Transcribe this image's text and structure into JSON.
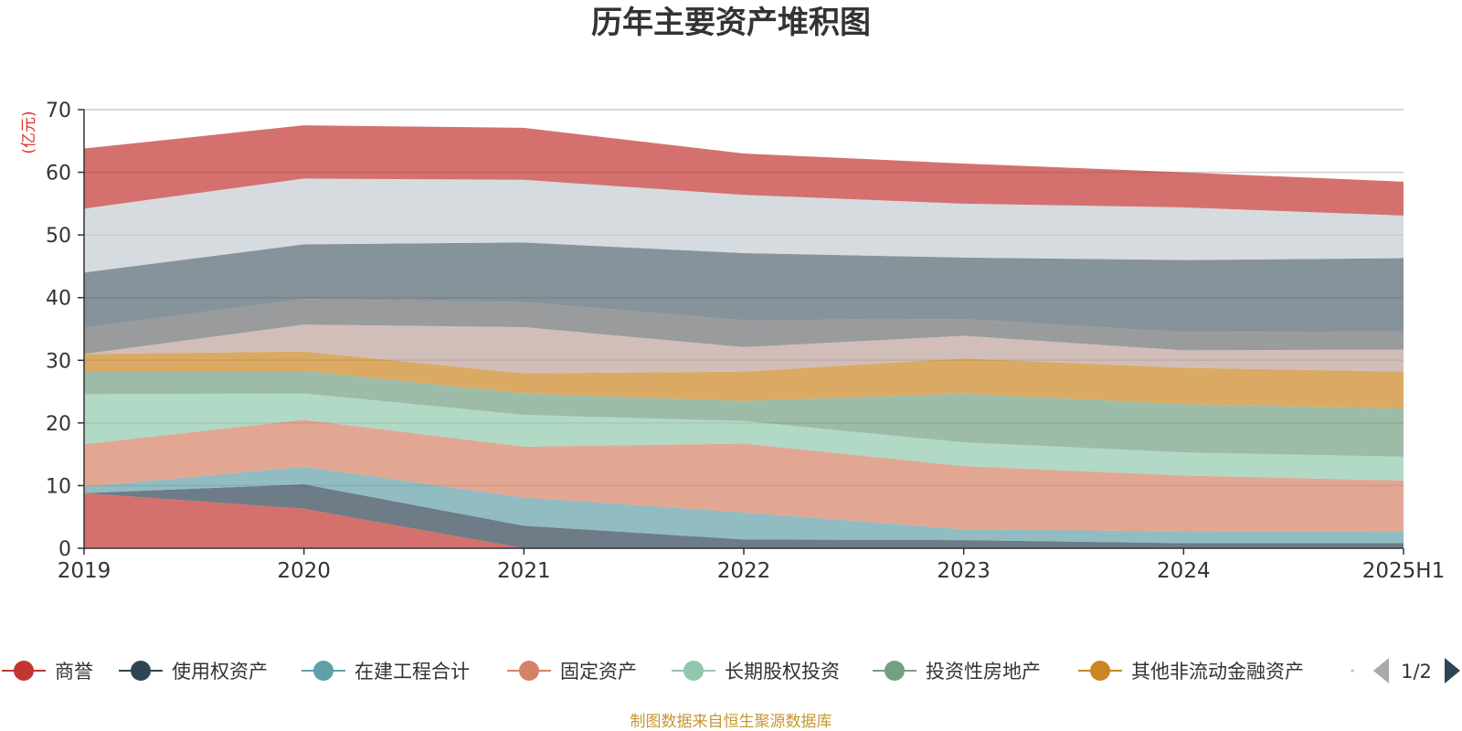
{
  "chart_data": {
    "type": "area",
    "stacked": true,
    "title": "历年主要资产堆积图",
    "ylabel": "(亿元)",
    "ylim": [
      0,
      70
    ],
    "yticks": [
      0,
      10,
      20,
      30,
      40,
      50,
      60,
      70
    ],
    "grid": true,
    "legend_position": "bottom",
    "categories": [
      "2019",
      "2020",
      "2021",
      "2022",
      "2023",
      "2024",
      "2025H1"
    ],
    "series": [
      {
        "name": "商誉",
        "color": "#c23531",
        "values": [
          8.8,
          6.3,
          0.0,
          0.0,
          0.0,
          0.0,
          0.0
        ]
      },
      {
        "name": "使用权资产",
        "color": "#2f4554",
        "values": [
          0.0,
          3.9,
          3.6,
          1.4,
          1.3,
          0.8,
          0.8
        ]
      },
      {
        "name": "在建工程合计",
        "color": "#61a0a8",
        "values": [
          1.0,
          2.8,
          4.5,
          4.3,
          1.7,
          1.9,
          1.8
        ]
      },
      {
        "name": "固定资产",
        "color": "#d48265",
        "values": [
          6.8,
          7.5,
          8.1,
          11.0,
          10.1,
          8.9,
          8.2
        ]
      },
      {
        "name": "长期股权投资",
        "color": "#91c7ae",
        "values": [
          8.0,
          4.2,
          5.1,
          3.6,
          3.8,
          3.7,
          3.8
        ]
      },
      {
        "name": "投资性房地产",
        "color": "#749f83",
        "values": [
          3.7,
          3.6,
          3.4,
          3.2,
          7.8,
          7.7,
          7.7
        ]
      },
      {
        "name": "其他非流动金融资产",
        "color": "#ca8622",
        "values": [
          2.7,
          3.1,
          3.2,
          4.7,
          5.6,
          5.8,
          5.9
        ]
      },
      {
        "name": "",
        "color": "#bda29a",
        "values": [
          0.0,
          4.3,
          7.4,
          3.9,
          3.6,
          2.8,
          3.5
        ]
      },
      {
        "name": "",
        "color": "#6e7074",
        "values": [
          4.2,
          4.1,
          4.0,
          4.3,
          2.7,
          2.9,
          2.9
        ]
      },
      {
        "name": "",
        "color": "#546570",
        "values": [
          8.8,
          8.7,
          9.5,
          10.7,
          9.8,
          11.5,
          11.7
        ]
      },
      {
        "name": "",
        "color": "#c4ccd3",
        "values": [
          10.2,
          10.5,
          10.0,
          9.3,
          8.6,
          8.4,
          6.8
        ]
      },
      {
        "name": "",
        "color": "#c23531",
        "values": [
          9.6,
          8.5,
          8.3,
          6.6,
          6.4,
          5.6,
          5.4
        ]
      }
    ]
  },
  "legend": {
    "items": [
      {
        "label": "商誉",
        "color": "#c23531"
      },
      {
        "label": "使用权资产",
        "color": "#2f4554"
      },
      {
        "label": "在建工程合计",
        "color": "#61a0a8"
      },
      {
        "label": "固定资产",
        "color": "#d48265"
      },
      {
        "label": "长期股权投资",
        "color": "#91c7ae"
      },
      {
        "label": "投资性房地产",
        "color": "#749f83"
      },
      {
        "label": "其他非流动金融资产",
        "color": "#ca8622"
      }
    ],
    "page_indicator": "1/2",
    "prev_icon": "triangle-left-icon",
    "next_icon": "triangle-right-icon"
  },
  "source_note": "制图数据来自恒生聚源数据库",
  "colors": {
    "source_note": "#c8962e",
    "unit_label": "#e03030",
    "axis": "#333333",
    "grid": "#cccccc",
    "pager_disabled": "#aaaaaa",
    "pager_active": "#2f4554"
  }
}
